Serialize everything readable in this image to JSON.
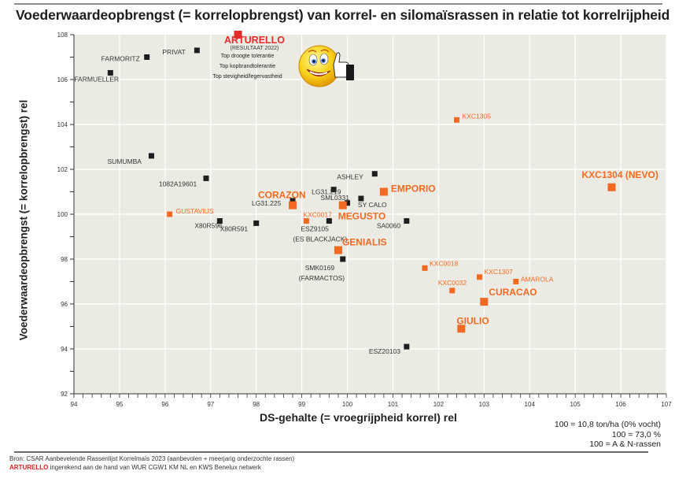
{
  "title": "Voederwaardeopbrengst (= korrelopbrengst) van korrel- en silomaïsrassen in relatie tot korrelrijpheid",
  "notes": [
    "100 = 10,8 ton/ha (0% vocht)",
    "100 = 73,0 %",
    "100 = A & N-rassen"
  ],
  "source": {
    "line1": "Bron: CSAR Aanbevelende Rassenlijst Korrelmaïs 2023 (aanbevolen + meerjarig onderzochte rassen)",
    "line2_highlight": "ARTURELLO",
    "line2_rest": " ingerekend aan de hand van WUR CGW1 KM NL en KWS Benelux netwerk"
  },
  "callout": {
    "name": "ARTURELLO",
    "subtitle": "(RESULTAAT 2022)",
    "lines": [
      "Top droogte tolerantie",
      "Top kopbrandtolerantie",
      "Top stevigheid/legervastheid"
    ],
    "icon": "smiley-thumbs-up-icon"
  },
  "colors": {
    "plot_bg": "#ecebe3",
    "grid": "#ffffff",
    "black_series": "#1e1e1e",
    "orange_series": "#f26a21",
    "highlight": "#e52a2a"
  },
  "chart_data": {
    "type": "scatter",
    "title": "Voederwaardeopbrengst (= korrelopbrengst) van korrel- en silomaïsrassen in relatie tot korrelrijpheid",
    "xlabel": "DS-gehalte (= vroegrijpheid korrel) rel",
    "ylabel": "Voederwaardeopbrengst (= korrelopbrengst) rel",
    "xlim": [
      94,
      107
    ],
    "ylim": [
      92,
      108
    ],
    "xticks": [
      "94",
      "95",
      "96",
      "97",
      "98",
      "99",
      "100",
      "101",
      "102",
      "103",
      "104",
      "105",
      "106",
      "107"
    ],
    "yticks": [
      "92",
      "94",
      "96",
      "98",
      "100",
      "102",
      "104",
      "106",
      "108"
    ],
    "grid": true,
    "legend": "none",
    "series": [
      {
        "name": "other",
        "color": "#1e1e1e",
        "points": [
          {
            "label": "FARMUELLER",
            "x": 94.8,
            "y": 106.3
          },
          {
            "label": "FARMORITZ",
            "x": 95.6,
            "y": 107.0
          },
          {
            "label": "PRIVAT",
            "x": 96.7,
            "y": 107.3
          },
          {
            "label": "SUMUMBA",
            "x": 95.7,
            "y": 102.6
          },
          {
            "label": "1082A19601",
            "x": 96.9,
            "y": 101.6
          },
          {
            "label": "X80R596",
            "x": 97.2,
            "y": 99.7
          },
          {
            "label": "X80R591",
            "x": 98.0,
            "y": 99.6
          },
          {
            "label": "LG31.225",
            "x": 98.8,
            "y": 100.6
          },
          {
            "label": "LG31.219",
            "x": 99.7,
            "y": 101.1
          },
          {
            "label": "ASHLEY",
            "x": 100.6,
            "y": 101.8
          },
          {
            "label": "SML0331",
            "x": 100.0,
            "y": 100.5
          },
          {
            "label": "SY CALO",
            "x": 100.3,
            "y": 100.7
          },
          {
            "label": "ESZ9105 (ES BLACKJACK)",
            "x": 99.6,
            "y": 99.7
          },
          {
            "label": "SA0060",
            "x": 101.3,
            "y": 99.7
          },
          {
            "label": "SMK0169 (FARMACTOS)",
            "x": 99.9,
            "y": 98.0
          },
          {
            "label": "ESZ20103",
            "x": 101.3,
            "y": 94.1
          }
        ]
      },
      {
        "name": "KWS",
        "color": "#f26a21",
        "points": [
          {
            "label": "GUSTAVIUS",
            "x": 96.1,
            "y": 100.0,
            "size": "small"
          },
          {
            "label": "CORAZON",
            "x": 98.8,
            "y": 100.4,
            "size": "large"
          },
          {
            "label": "KXC0017",
            "x": 99.1,
            "y": 99.7,
            "size": "small"
          },
          {
            "label": "MEGUSTO",
            "x": 99.9,
            "y": 100.4,
            "size": "large"
          },
          {
            "label": "EMPORIO",
            "x": 100.8,
            "y": 101.0,
            "size": "large"
          },
          {
            "label": "GENIALIS",
            "x": 99.8,
            "y": 98.4,
            "size": "large"
          },
          {
            "label": "KXC1305",
            "x": 102.4,
            "y": 104.2,
            "size": "small"
          },
          {
            "label": "KXC1304 (NEVO)",
            "x": 105.8,
            "y": 101.2,
            "size": "large"
          },
          {
            "label": "KXC0018",
            "x": 101.7,
            "y": 97.6,
            "size": "small"
          },
          {
            "label": "KXC0032",
            "x": 102.3,
            "y": 96.6,
            "size": "small"
          },
          {
            "label": "KXC1307",
            "x": 102.9,
            "y": 97.2,
            "size": "small"
          },
          {
            "label": "AMAROLA",
            "x": 103.7,
            "y": 97.0,
            "size": "small"
          },
          {
            "label": "CURACAO",
            "x": 103.0,
            "y": 96.1,
            "size": "large"
          },
          {
            "label": "GIULIO",
            "x": 102.5,
            "y": 94.9,
            "size": "large"
          }
        ]
      },
      {
        "name": "highlight",
        "color": "#e52a2a",
        "points": [
          {
            "label": "ARTURELLO",
            "x": 97.6,
            "y": 108.0,
            "size": "large"
          }
        ]
      }
    ]
  }
}
